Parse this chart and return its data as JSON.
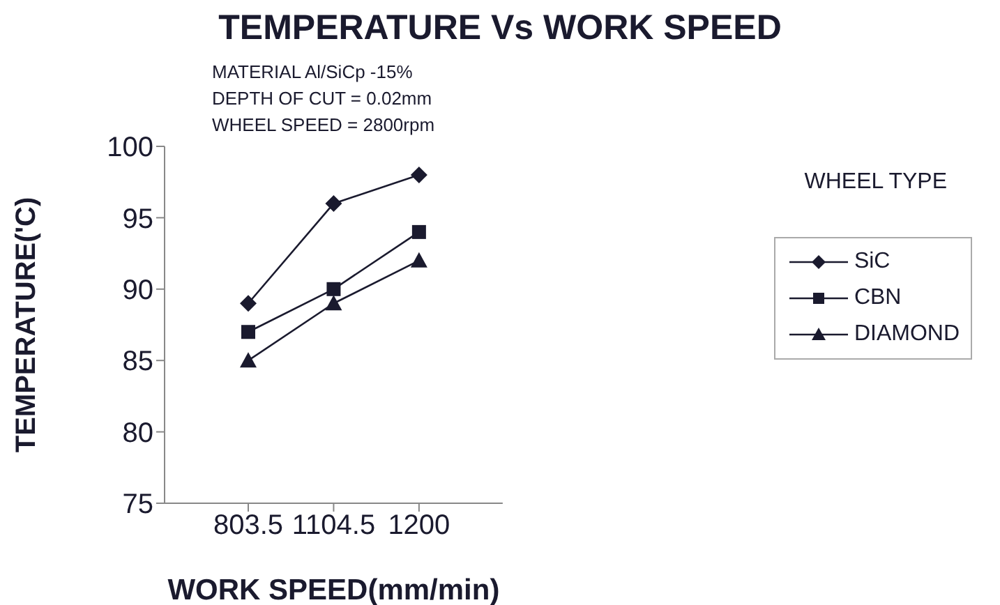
{
  "chart_data": {
    "type": "line",
    "title": "TEMPERATURE Vs WORK SPEED",
    "xlabel": "WORK SPEED(mm/min)",
    "ylabel": "TEMPERATURE('C)",
    "legend_title": "WHEEL TYPE",
    "annotations": [
      "MATERIAL Al/SiCp -15%",
      "DEPTH OF CUT = 0.02mm",
      "WHEEL SPEED = 2800rpm"
    ],
    "categories": [
      "803.5",
      "1104.5",
      "1200"
    ],
    "series": [
      {
        "name": "SiC",
        "color": "#1a1a2e",
        "marker": "diamond",
        "values": [
          89,
          96,
          98
        ]
      },
      {
        "name": "CBN",
        "color": "#1a1a2e",
        "marker": "square",
        "values": [
          87,
          90,
          94
        ]
      },
      {
        "name": "DIAMOND",
        "color": "#1a1a2e",
        "marker": "triangle",
        "values": [
          85,
          89,
          92
        ]
      }
    ],
    "ylim": [
      75,
      100
    ],
    "yticks": [
      75,
      80,
      85,
      90,
      95,
      100
    ],
    "grid": false,
    "legend": "right"
  }
}
